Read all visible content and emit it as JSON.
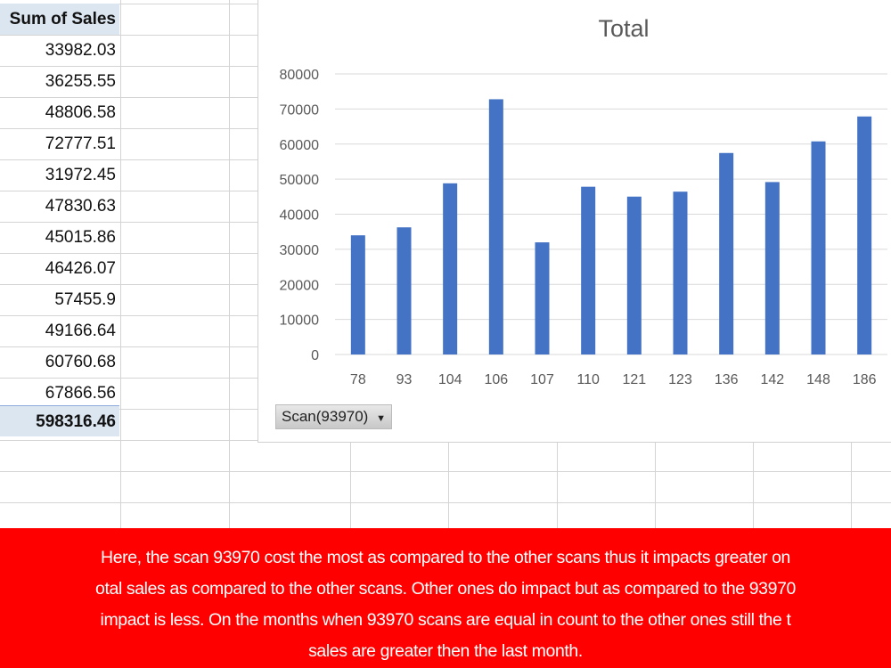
{
  "table": {
    "header": "Sum of Sales",
    "values": [
      "33982.03",
      "36255.55",
      "48806.58",
      "72777.51",
      "31972.45",
      "47830.63",
      "45015.86",
      "46426.07",
      "57455.9",
      "49166.64",
      "60760.68",
      "67866.56"
    ],
    "total": "598316.46"
  },
  "chart_data": {
    "type": "bar",
    "title": "Total",
    "categories": [
      "78",
      "93",
      "104",
      "106",
      "107",
      "110",
      "121",
      "123",
      "136",
      "142",
      "148",
      "186"
    ],
    "values": [
      33982.03,
      36255.55,
      48806.58,
      72777.51,
      31972.45,
      47830.63,
      45015.86,
      46426.07,
      57455.9,
      49166.64,
      60760.68,
      67866.56
    ],
    "ylim": [
      0,
      80000
    ],
    "yticks": [
      "0",
      "10000",
      "20000",
      "30000",
      "40000",
      "50000",
      "60000",
      "70000",
      "80000"
    ],
    "grid": true,
    "bar_color": "#4472c4"
  },
  "filter": {
    "label": "Scan(93970)",
    "icon": "dropdown-arrow-icon"
  },
  "banner": {
    "color": "#ff0000",
    "lines": [
      "Here, the scan 93970 cost the most as compared to the other scans thus it impacts greater on",
      "otal sales as compared to the other scans. Other ones do impact but as compared to the 93970",
      " impact is less. On the months when 93970 scans are equal in count to the other ones still the t",
      "sales are greater then the last month."
    ]
  }
}
